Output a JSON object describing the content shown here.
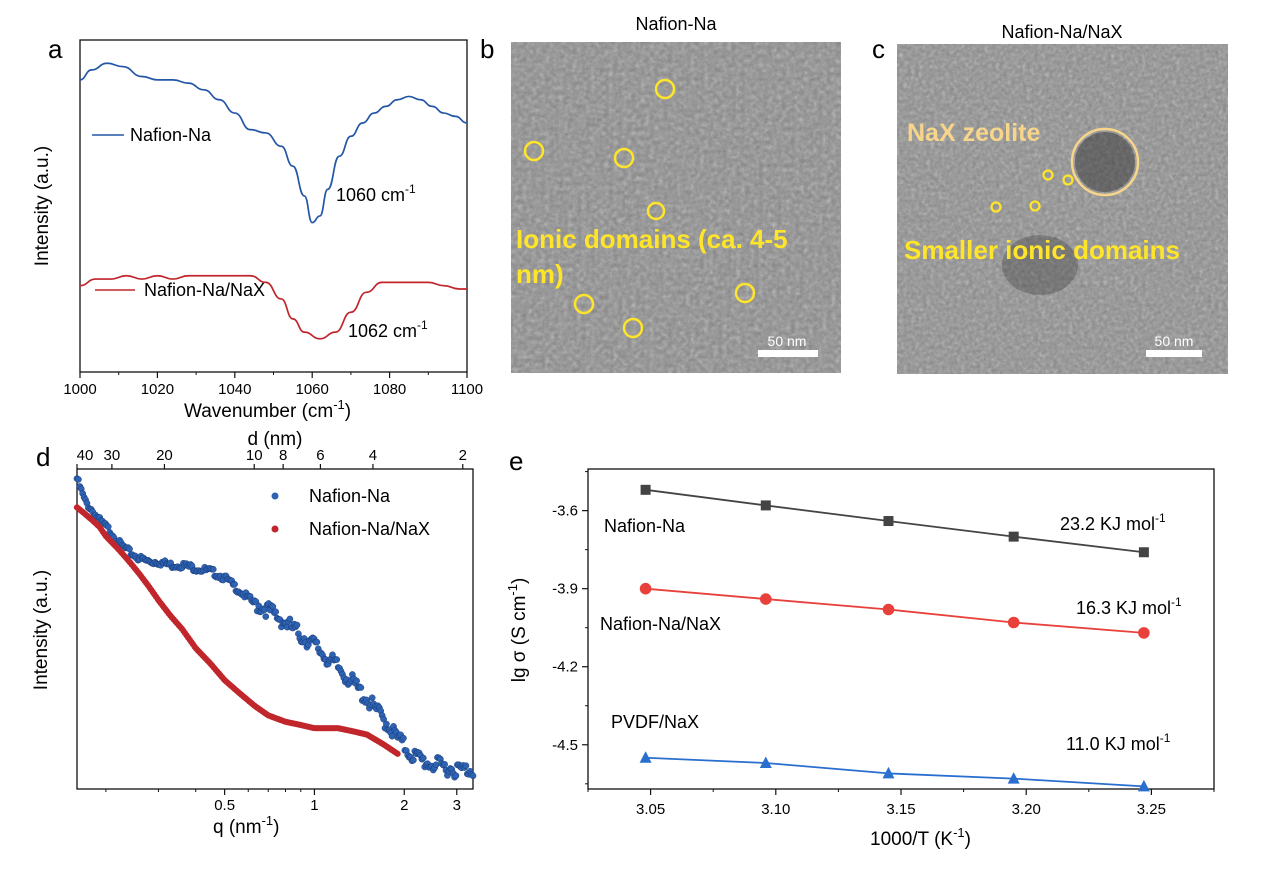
{
  "panels": {
    "a": {
      "letter": "a",
      "xlabel": "Wavenumber  (cm",
      "xlabel_sup": "-1",
      "xlabel_end": ")",
      "ylabel": "Intensity (a.u.)",
      "legend": [
        {
          "name": "Nafion-Na",
          "color": "#2456a6"
        },
        {
          "name": "Nafion-Na/NaX",
          "color": "#c0262b"
        }
      ],
      "annotations": [
        {
          "text": "1060 cm",
          "sup": "-1"
        },
        {
          "text": "1062 cm",
          "sup": "-1"
        }
      ]
    },
    "b": {
      "letter": "b",
      "title": "Nafion-Na",
      "label_line1": "Ionic domains (ca. 4-5",
      "label_line2": "nm)",
      "scalebar": "50 nm"
    },
    "c": {
      "letter": "c",
      "title": "Nafion-Na/NaX",
      "label_zeolite": "NaX zeolite",
      "label_domains": "Smaller ionic domains",
      "scalebar": "50 nm"
    },
    "d": {
      "letter": "d",
      "xlabel": "q (nm",
      "xlabel_sup": "-1",
      "xlabel_end": ")",
      "ylabel": "Intensity (a.u.)",
      "top_label": "d (nm)",
      "legend": [
        {
          "name": "Nafion-Na",
          "color": "#2e63b3"
        },
        {
          "name": "Nafion-Na/NaX",
          "color": "#c0262b"
        }
      ]
    },
    "e": {
      "letter": "e",
      "xlabel": "1000/T (K",
      "xlabel_sup": "-1",
      "xlabel_end": ")",
      "ylabel": "lg σ (S cm",
      "ylabel_sup": "-1",
      "ylabel_end": ")",
      "series_labels": [
        {
          "name": "Nafion-Na",
          "energy": "23.2 KJ mol",
          "sup": "-1"
        },
        {
          "name": "Nafion-Na/NaX",
          "energy": "16.3 KJ mol",
          "sup": "-1"
        },
        {
          "name": "PVDF/NaX",
          "energy": "11.0 KJ mol",
          "sup": "-1"
        }
      ]
    }
  },
  "chart_data": [
    {
      "panel": "a",
      "type": "line",
      "xlim": [
        1000,
        1100
      ],
      "x_ticks": [
        "1000",
        "1020",
        "1040",
        "1060",
        "1080",
        "1100"
      ],
      "series": [
        {
          "name": "Nafion-Na",
          "color": "#2456a6",
          "x": [
            1000,
            1003,
            1007,
            1011,
            1016,
            1020,
            1024,
            1028,
            1032,
            1036,
            1040,
            1044,
            1048,
            1052,
            1055,
            1058,
            1060,
            1062,
            1064,
            1067,
            1070,
            1073,
            1076,
            1079,
            1082,
            1085,
            1088,
            1091,
            1094,
            1097,
            1100
          ],
          "y": [
            0.88,
            0.91,
            0.93,
            0.92,
            0.89,
            0.88,
            0.88,
            0.87,
            0.85,
            0.82,
            0.78,
            0.73,
            0.72,
            0.68,
            0.62,
            0.53,
            0.45,
            0.47,
            0.55,
            0.65,
            0.71,
            0.75,
            0.78,
            0.8,
            0.82,
            0.83,
            0.82,
            0.8,
            0.78,
            0.77,
            0.75
          ]
        },
        {
          "name": "Nafion-Na/NaX",
          "color": "#c0262b",
          "x": [
            1000,
            1004,
            1008,
            1012,
            1016,
            1020,
            1024,
            1028,
            1032,
            1036,
            1040,
            1044,
            1048,
            1052,
            1055,
            1058,
            1062,
            1066,
            1070,
            1074,
            1078,
            1082,
            1086,
            1090,
            1094,
            1098,
            1100
          ],
          "y": [
            0.26,
            0.28,
            0.28,
            0.29,
            0.28,
            0.29,
            0.28,
            0.29,
            0.29,
            0.29,
            0.29,
            0.29,
            0.27,
            0.22,
            0.16,
            0.12,
            0.1,
            0.12,
            0.18,
            0.24,
            0.27,
            0.27,
            0.27,
            0.27,
            0.26,
            0.25,
            0.25
          ]
        }
      ]
    },
    {
      "panel": "d",
      "type": "scatter",
      "xscale": "log",
      "xlim": [
        0.16,
        3.4
      ],
      "x_ticks": [
        "0.5",
        "1",
        "2",
        "3"
      ],
      "top_ticks": [
        "40",
        "30",
        "20",
        "10",
        "8",
        "6",
        "4",
        "2"
      ],
      "series": [
        {
          "name": "Nafion-Na",
          "color": "#2e63b3",
          "x": [
            0.16,
            0.17,
            0.18,
            0.19,
            0.2,
            0.21,
            0.22,
            0.24,
            0.26,
            0.28,
            0.3,
            0.33,
            0.36,
            0.4,
            0.45,
            0.5,
            0.56,
            0.63,
            0.7,
            0.8,
            0.9,
            1.0,
            1.1,
            1.2,
            1.35,
            1.5,
            1.7,
            1.9,
            2.1,
            2.4,
            2.7,
            3.0,
            3.4
          ],
          "y": [
            0.97,
            0.9,
            0.87,
            0.84,
            0.82,
            0.8,
            0.77,
            0.74,
            0.72,
            0.71,
            0.71,
            0.7,
            0.7,
            0.69,
            0.68,
            0.66,
            0.62,
            0.58,
            0.56,
            0.52,
            0.48,
            0.45,
            0.41,
            0.38,
            0.33,
            0.28,
            0.22,
            0.16,
            0.11,
            0.08,
            0.07,
            0.06,
            0.06
          ]
        },
        {
          "name": "Nafion-Na/NaX",
          "color": "#c0262b",
          "x": [
            0.16,
            0.17,
            0.18,
            0.19,
            0.2,
            0.22,
            0.24,
            0.26,
            0.28,
            0.3,
            0.33,
            0.36,
            0.4,
            0.45,
            0.5,
            0.56,
            0.63,
            0.7,
            0.8,
            0.9,
            1.0,
            1.1,
            1.2,
            1.35,
            1.5,
            1.7,
            1.9
          ],
          "y": [
            0.88,
            0.86,
            0.84,
            0.82,
            0.79,
            0.75,
            0.71,
            0.67,
            0.63,
            0.59,
            0.54,
            0.5,
            0.44,
            0.39,
            0.34,
            0.3,
            0.26,
            0.23,
            0.21,
            0.2,
            0.19,
            0.19,
            0.19,
            0.18,
            0.17,
            0.14,
            0.11
          ]
        }
      ]
    },
    {
      "panel": "e",
      "type": "line",
      "xlim": [
        3.025,
        3.275
      ],
      "ylim": [
        -4.67,
        -3.44
      ],
      "x_ticks": [
        3.05,
        3.1,
        3.15,
        3.2,
        3.25
      ],
      "x_tick_labels": [
        "3.05",
        "3.10",
        "3.15",
        "3.20",
        "3.25"
      ],
      "y_ticks": [
        -3.6,
        -3.9,
        -4.2,
        -4.5
      ],
      "y_tick_labels": [
        "-3.6",
        "-3.9",
        "-4.2",
        "-4.5"
      ],
      "series": [
        {
          "name": "Nafion-Na",
          "color": "#444444",
          "marker": "square",
          "x": [
            3.048,
            3.096,
            3.145,
            3.195,
            3.247
          ],
          "y": [
            -3.52,
            -3.58,
            -3.64,
            -3.7,
            -3.76
          ]
        },
        {
          "name": "Nafion-Na/NaX",
          "color": "#e8413c",
          "marker": "circle",
          "x": [
            3.048,
            3.096,
            3.145,
            3.195,
            3.247
          ],
          "y": [
            -3.9,
            -3.94,
            -3.98,
            -4.03,
            -4.07
          ]
        },
        {
          "name": "PVDF/NaX",
          "color": "#2a6fcf",
          "marker": "triangle",
          "x": [
            3.048,
            3.096,
            3.145,
            3.195,
            3.247
          ],
          "y": [
            -4.55,
            -4.57,
            -4.61,
            -4.63,
            -4.66
          ]
        }
      ]
    }
  ]
}
